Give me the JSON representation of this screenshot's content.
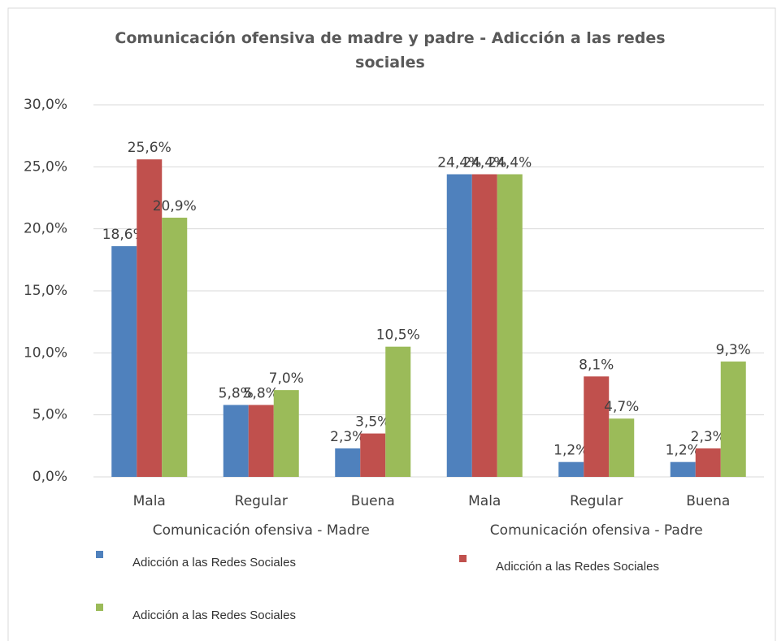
{
  "chart_data": {
    "type": "bar",
    "title": "Comunicación ofensiva de madre y padre - Adicción a las redes sociales",
    "categories": [
      "Mala",
      "Regular",
      "Buena",
      "Mala",
      "Regular",
      "Buena"
    ],
    "category_groups": [
      "Comunicación ofensiva - Madre",
      "Comunicación ofensiva - Padre"
    ],
    "series": [
      {
        "name": "Adicción a las Redes Sociales",
        "color": "#4f81bd",
        "values": [
          18.6,
          5.8,
          2.3,
          24.4,
          1.2,
          1.2
        ],
        "value_labels": [
          "18,6%",
          "5,8%",
          "2,3%",
          "24,4%",
          "1,2%",
          "1,2%"
        ]
      },
      {
        "name": "Adicción a las Redes Sociales",
        "color": "#c0504d",
        "values": [
          25.6,
          5.8,
          3.5,
          24.4,
          8.1,
          2.3
        ],
        "value_labels": [
          "25,6%",
          "5,8%",
          "3,5%",
          "24,4%",
          "8,1%",
          "2,3%"
        ]
      },
      {
        "name": "Adicción a las Redes Sociales",
        "color": "#9bbb59",
        "values": [
          20.9,
          7.0,
          10.5,
          24.4,
          4.7,
          9.3
        ],
        "value_labels": [
          "20,9%",
          "7,0%",
          "10,5%",
          "24,4%",
          "4,7%",
          "9,3%"
        ]
      }
    ],
    "ylim": [
      0,
      30
    ],
    "yticks": [
      {
        "value": 0,
        "label": "0,0%"
      },
      {
        "value": 5,
        "label": "5,0%"
      },
      {
        "value": 10,
        "label": "10,0%"
      },
      {
        "value": 15,
        "label": "15,0%"
      },
      {
        "value": 20,
        "label": "20,0%"
      },
      {
        "value": 25,
        "label": "25,0%"
      },
      {
        "value": 30,
        "label": "30,0%"
      }
    ],
    "grid": true
  }
}
